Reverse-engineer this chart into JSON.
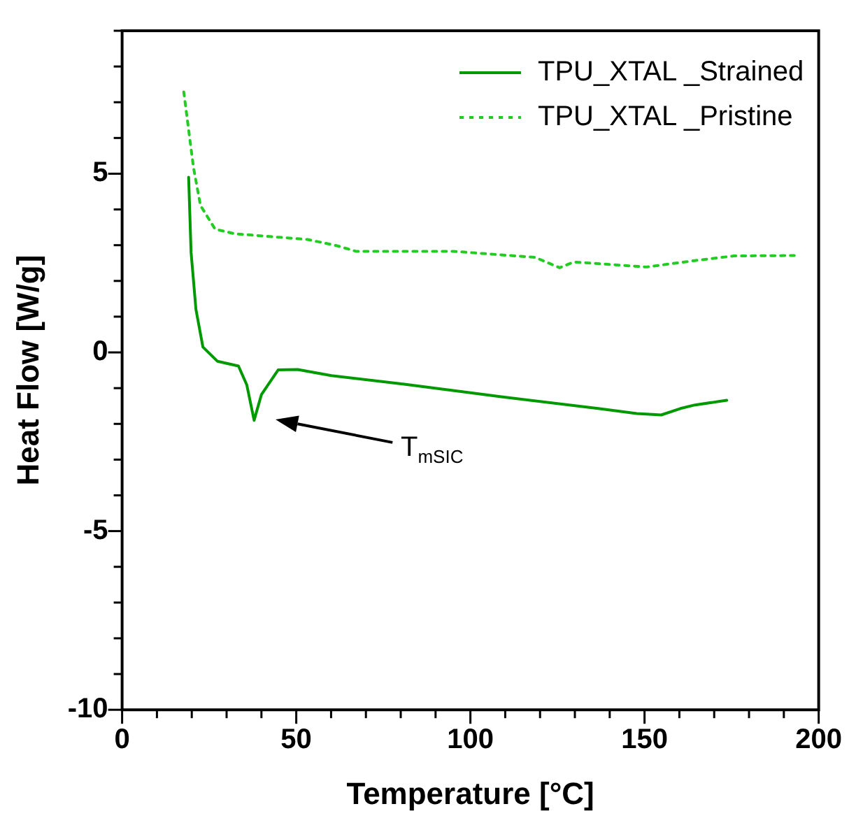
{
  "chart_data": {
    "type": "line",
    "xlabel": "Temperature [°C]",
    "ylabel": "Heat Flow [W/g]",
    "xlim": [
      0,
      200
    ],
    "ylim": [
      -10,
      9
    ],
    "xticks": [
      0,
      {
        "value": 10,
        "label": null
      },
      {
        "value": 20,
        "label": null
      },
      {
        "value": 30,
        "label": null
      },
      {
        "value": 40,
        "label": null
      },
      50,
      {
        "value": 60,
        "label": null
      },
      {
        "value": 70,
        "label": null
      },
      {
        "value": 80,
        "label": null
      },
      {
        "value": 90,
        "label": null
      },
      100,
      {
        "value": 110,
        "label": null
      },
      {
        "value": 120,
        "label": null
      },
      {
        "value": 130,
        "label": null
      },
      {
        "value": 140,
        "label": null
      },
      150,
      {
        "value": 160,
        "label": null
      },
      {
        "value": 170,
        "label": null
      },
      {
        "value": 180,
        "label": null
      },
      {
        "value": 190,
        "label": null
      },
      200
    ],
    "yticks": [
      -10,
      {
        "value": -9,
        "label": null
      },
      {
        "value": -8,
        "label": null
      },
      {
        "value": -7,
        "label": null
      },
      {
        "value": -6,
        "label": null
      },
      -5,
      {
        "value": -4,
        "label": null
      },
      {
        "value": -3,
        "label": null
      },
      {
        "value": -2,
        "label": null
      },
      {
        "value": -1,
        "label": null
      },
      0,
      {
        "value": 1,
        "label": null
      },
      {
        "value": 2,
        "label": null
      },
      {
        "value": 3,
        "label": null
      },
      {
        "value": 4,
        "label": null
      },
      5,
      {
        "value": 6,
        "label": null
      },
      {
        "value": 7,
        "label": null
      },
      {
        "value": 8,
        "label": null
      },
      {
        "value": 9,
        "label": null
      }
    ],
    "grid": false,
    "legend": "top right",
    "marker": "none",
    "series": [
      {
        "name": "TPU_XTAL _Strained",
        "color": "#009900",
        "line_style": "solid",
        "x": [
          19.1,
          19.8,
          21.2,
          23.2,
          27.4,
          33.4,
          35.8,
          37.9,
          40,
          44.8,
          50.4,
          60.1,
          81,
          108.9,
          136.7,
          147.8,
          154.8,
          160.3,
          164.5,
          173.6
        ],
        "values": [
          4.9,
          2.8,
          1.2,
          0.15,
          -0.25,
          -0.38,
          -0.91,
          -1.9,
          -1.18,
          -0.49,
          -0.48,
          -0.65,
          -0.89,
          -1.24,
          -1.57,
          -1.71,
          -1.75,
          -1.57,
          -1.47,
          -1.34
        ]
      },
      {
        "name": "TPU_XTAL _Pristine",
        "color": "#22cc22",
        "line_style": "dotted",
        "x": [
          17.7,
          19.1,
          20.5,
          22.5,
          26.7,
          32.3,
          53.2,
          61.5,
          67.1,
          94.9,
          118.6,
          125.6,
          129.7,
          150.6,
          164.5,
          175.7,
          193
        ],
        "values": [
          7.29,
          6.23,
          5.17,
          4.11,
          3.45,
          3.32,
          3.16,
          2.99,
          2.83,
          2.83,
          2.66,
          2.37,
          2.53,
          2.39,
          2.57,
          2.7,
          2.71
        ]
      }
    ],
    "annotations": [
      "T$_{mSIC}$"
    ]
  }
}
